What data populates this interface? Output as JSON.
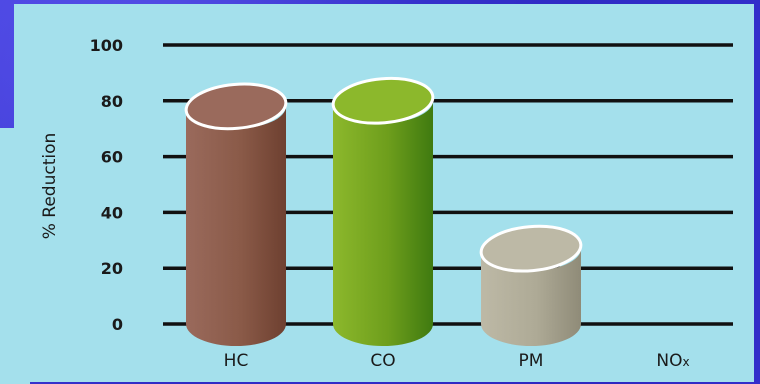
{
  "chart_data": {
    "type": "bar",
    "categories": [
      "HC",
      "CO",
      "PM",
      "NOx"
    ],
    "values": [
      78,
      80,
      27,
      0
    ],
    "title": "",
    "xlabel": "",
    "ylabel": "% Reduction",
    "ylim": [
      0,
      100
    ],
    "yticks": [
      "0",
      "20",
      "40",
      "60",
      "80",
      "100"
    ],
    "grid": true,
    "legend": "none",
    "colors": {
      "HC": [
        "#9a6a5c",
        "#7a4a36"
      ],
      "CO": [
        "#8cb82c",
        "#3f7a10"
      ],
      "PM": [
        "#bdb9a6",
        "#8f8b78"
      ],
      "NOx": [
        "#a4e0ec",
        "#a4e0ec"
      ],
      "gridline": "#111111",
      "panel": "#a4e0ec",
      "background": "#3b37d2"
    }
  }
}
